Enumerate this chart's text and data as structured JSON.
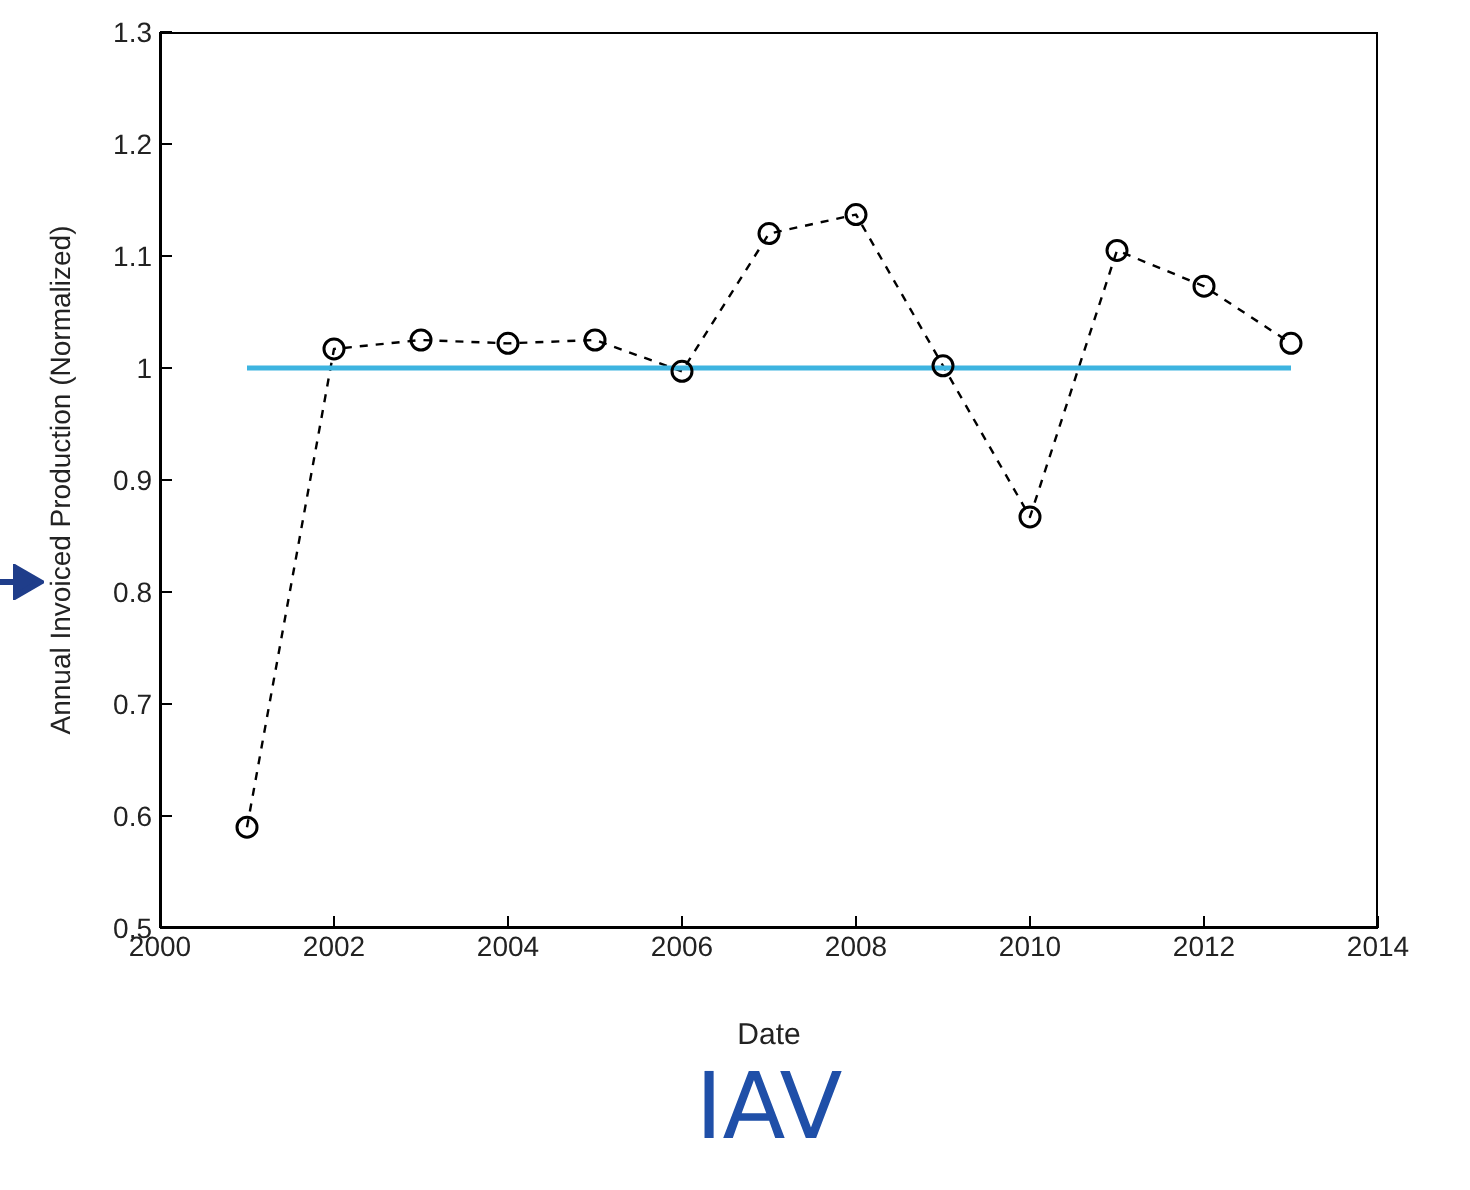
{
  "chart_data": {
    "type": "line",
    "xlabel": "Date",
    "ylabel": "Annual Invoiced Production (Normalized)",
    "annotations": [
      "IAV"
    ],
    "xlim": [
      2000,
      2014
    ],
    "xticks": [
      2000,
      2002,
      2004,
      2006,
      2008,
      2010,
      2012,
      2014
    ],
    "ylim": [
      0.5,
      1.3
    ],
    "yticks": [
      0.5,
      0.6,
      0.7,
      0.8,
      0.9,
      1,
      1.1,
      1.2,
      1.3
    ],
    "grid": false,
    "legend": false,
    "series": [
      {
        "color": "#000000",
        "marker": "circle",
        "line_style": "dashed",
        "x": [
          2001,
          2002,
          2003,
          2004,
          2005,
          2006,
          2007,
          2008,
          2009,
          2010,
          2011,
          2012,
          2013
        ],
        "values": [
          0.59,
          1.017,
          1.025,
          1.022,
          1.025,
          0.997,
          1.12,
          1.137,
          1.002,
          0.867,
          1.105,
          1.073,
          1.022
        ]
      },
      {
        "color": "#3db4e0",
        "marker": "none",
        "line_style": "solid",
        "x": [
          2001,
          2013
        ],
        "values": [
          1,
          1
        ]
      }
    ]
  }
}
